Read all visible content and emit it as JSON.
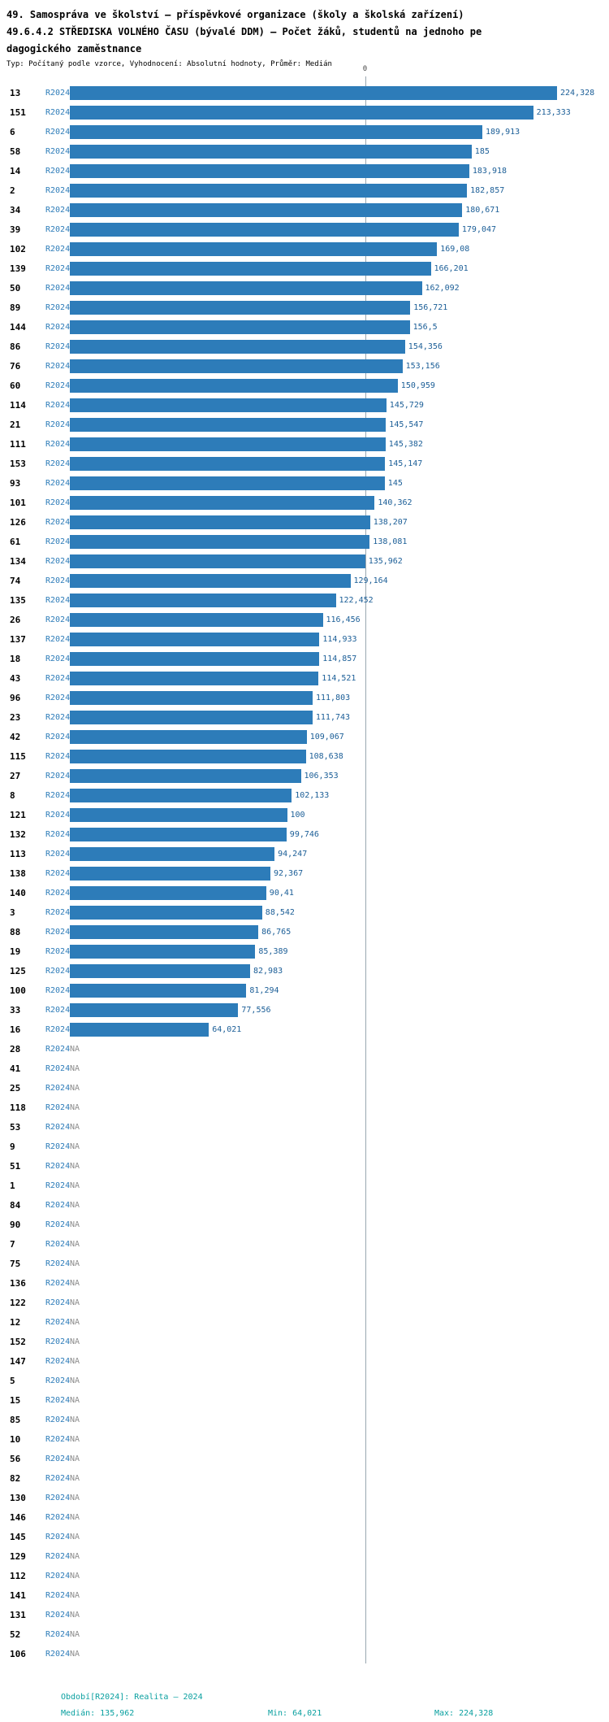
{
  "header": {
    "title_line1": "49. Samospráva ve školství – příspěvkové organizace (školy a školská zařízení)",
    "title_line2": "49.6.4.2 STŘEDISKA VOLNÉHO ČASU (bývalé DDM) – Počet žáků, studentů na jednoho pe",
    "title_line3": "dagogického zaměstnance",
    "subtitle": "Typ: Počítaný podle vzorce, Vyhodnocení: Absolutní hodnoty, Průměr: Medián"
  },
  "chart_data": {
    "type": "bar",
    "orientation": "horizontal",
    "title": "49. Samospráva ve školství – příspěvkové organizace (školy a školská zařízení) 49.6.4.2 STŘEDISKA VOLNÉHO ČASU (bývalé DDM) – Počet žáků, studentů na jednoho pedagogického zaměstnance",
    "subtitle": "Typ: Počítaný podle vzorce, Vyhodnocení: Absolutní hodnoty, Průměr: Medián",
    "series_label": "R2024",
    "na_label": "NA",
    "axis_top_tick": "0",
    "bar_color": "#2d7cb9",
    "median_value": 135.962,
    "min_value": 64.021,
    "max_value": 224.328,
    "x_max": 224.328,
    "rows": [
      {
        "id": "13",
        "value": 224.328,
        "label": "224,328"
      },
      {
        "id": "151",
        "value": 213.333,
        "label": "213,333"
      },
      {
        "id": "6",
        "value": 189.913,
        "label": "189,913"
      },
      {
        "id": "58",
        "value": 185,
        "label": "185"
      },
      {
        "id": "14",
        "value": 183.918,
        "label": "183,918"
      },
      {
        "id": "2",
        "value": 182.857,
        "label": "182,857"
      },
      {
        "id": "34",
        "value": 180.671,
        "label": "180,671"
      },
      {
        "id": "39",
        "value": 179.047,
        "label": "179,047"
      },
      {
        "id": "102",
        "value": 169.08,
        "label": "169,08"
      },
      {
        "id": "139",
        "value": 166.201,
        "label": "166,201"
      },
      {
        "id": "50",
        "value": 162.092,
        "label": "162,092"
      },
      {
        "id": "89",
        "value": 156.721,
        "label": "156,721"
      },
      {
        "id": "144",
        "value": 156.5,
        "label": "156,5"
      },
      {
        "id": "86",
        "value": 154.356,
        "label": "154,356"
      },
      {
        "id": "76",
        "value": 153.156,
        "label": "153,156"
      },
      {
        "id": "60",
        "value": 150.959,
        "label": "150,959"
      },
      {
        "id": "114",
        "value": 145.729,
        "label": "145,729"
      },
      {
        "id": "21",
        "value": 145.547,
        "label": "145,547"
      },
      {
        "id": "111",
        "value": 145.382,
        "label": "145,382"
      },
      {
        "id": "153",
        "value": 145.147,
        "label": "145,147"
      },
      {
        "id": "93",
        "value": 145,
        "label": "145"
      },
      {
        "id": "101",
        "value": 140.362,
        "label": "140,362"
      },
      {
        "id": "126",
        "value": 138.207,
        "label": "138,207"
      },
      {
        "id": "61",
        "value": 138.081,
        "label": "138,081"
      },
      {
        "id": "134",
        "value": 135.962,
        "label": "135,962"
      },
      {
        "id": "74",
        "value": 129.164,
        "label": "129,164"
      },
      {
        "id": "135",
        "value": 122.452,
        "label": "122,452"
      },
      {
        "id": "26",
        "value": 116.456,
        "label": "116,456"
      },
      {
        "id": "137",
        "value": 114.933,
        "label": "114,933"
      },
      {
        "id": "18",
        "value": 114.857,
        "label": "114,857"
      },
      {
        "id": "43",
        "value": 114.521,
        "label": "114,521"
      },
      {
        "id": "96",
        "value": 111.803,
        "label": "111,803"
      },
      {
        "id": "23",
        "value": 111.743,
        "label": "111,743"
      },
      {
        "id": "42",
        "value": 109.067,
        "label": "109,067"
      },
      {
        "id": "115",
        "value": 108.638,
        "label": "108,638"
      },
      {
        "id": "27",
        "value": 106.353,
        "label": "106,353"
      },
      {
        "id": "8",
        "value": 102.133,
        "label": "102,133"
      },
      {
        "id": "121",
        "value": 100,
        "label": "100"
      },
      {
        "id": "132",
        "value": 99.746,
        "label": "99,746"
      },
      {
        "id": "113",
        "value": 94.247,
        "label": "94,247"
      },
      {
        "id": "138",
        "value": 92.367,
        "label": "92,367"
      },
      {
        "id": "140",
        "value": 90.41,
        "label": "90,41"
      },
      {
        "id": "3",
        "value": 88.542,
        "label": "88,542"
      },
      {
        "id": "88",
        "value": 86.765,
        "label": "86,765"
      },
      {
        "id": "19",
        "value": 85.389,
        "label": "85,389"
      },
      {
        "id": "125",
        "value": 82.983,
        "label": "82,983"
      },
      {
        "id": "100",
        "value": 81.294,
        "label": "81,294"
      },
      {
        "id": "33",
        "value": 77.556,
        "label": "77,556"
      },
      {
        "id": "16",
        "value": 64.021,
        "label": "64,021"
      },
      {
        "id": "28",
        "value": null,
        "label": "NA"
      },
      {
        "id": "41",
        "value": null,
        "label": "NA"
      },
      {
        "id": "25",
        "value": null,
        "label": "NA"
      },
      {
        "id": "118",
        "value": null,
        "label": "NA"
      },
      {
        "id": "53",
        "value": null,
        "label": "NA"
      },
      {
        "id": "9",
        "value": null,
        "label": "NA"
      },
      {
        "id": "51",
        "value": null,
        "label": "NA"
      },
      {
        "id": "1",
        "value": null,
        "label": "NA"
      },
      {
        "id": "84",
        "value": null,
        "label": "NA"
      },
      {
        "id": "90",
        "value": null,
        "label": "NA"
      },
      {
        "id": "7",
        "value": null,
        "label": "NA"
      },
      {
        "id": "75",
        "value": null,
        "label": "NA"
      },
      {
        "id": "136",
        "value": null,
        "label": "NA"
      },
      {
        "id": "122",
        "value": null,
        "label": "NA"
      },
      {
        "id": "12",
        "value": null,
        "label": "NA"
      },
      {
        "id": "152",
        "value": null,
        "label": "NA"
      },
      {
        "id": "147",
        "value": null,
        "label": "NA"
      },
      {
        "id": "5",
        "value": null,
        "label": "NA"
      },
      {
        "id": "15",
        "value": null,
        "label": "NA"
      },
      {
        "id": "85",
        "value": null,
        "label": "NA"
      },
      {
        "id": "10",
        "value": null,
        "label": "NA"
      },
      {
        "id": "56",
        "value": null,
        "label": "NA"
      },
      {
        "id": "82",
        "value": null,
        "label": "NA"
      },
      {
        "id": "130",
        "value": null,
        "label": "NA"
      },
      {
        "id": "146",
        "value": null,
        "label": "NA"
      },
      {
        "id": "145",
        "value": null,
        "label": "NA"
      },
      {
        "id": "129",
        "value": null,
        "label": "NA"
      },
      {
        "id": "112",
        "value": null,
        "label": "NA"
      },
      {
        "id": "141",
        "value": null,
        "label": "NA"
      },
      {
        "id": "131",
        "value": null,
        "label": "NA"
      },
      {
        "id": "52",
        "value": null,
        "label": "NA"
      },
      {
        "id": "106",
        "value": null,
        "label": "NA"
      }
    ]
  },
  "footer": {
    "period": "Období[R2024]: Realita – 2024",
    "median": "Medián: 135,962",
    "min": "Min: 64,021",
    "max": "Max: 224,328"
  }
}
